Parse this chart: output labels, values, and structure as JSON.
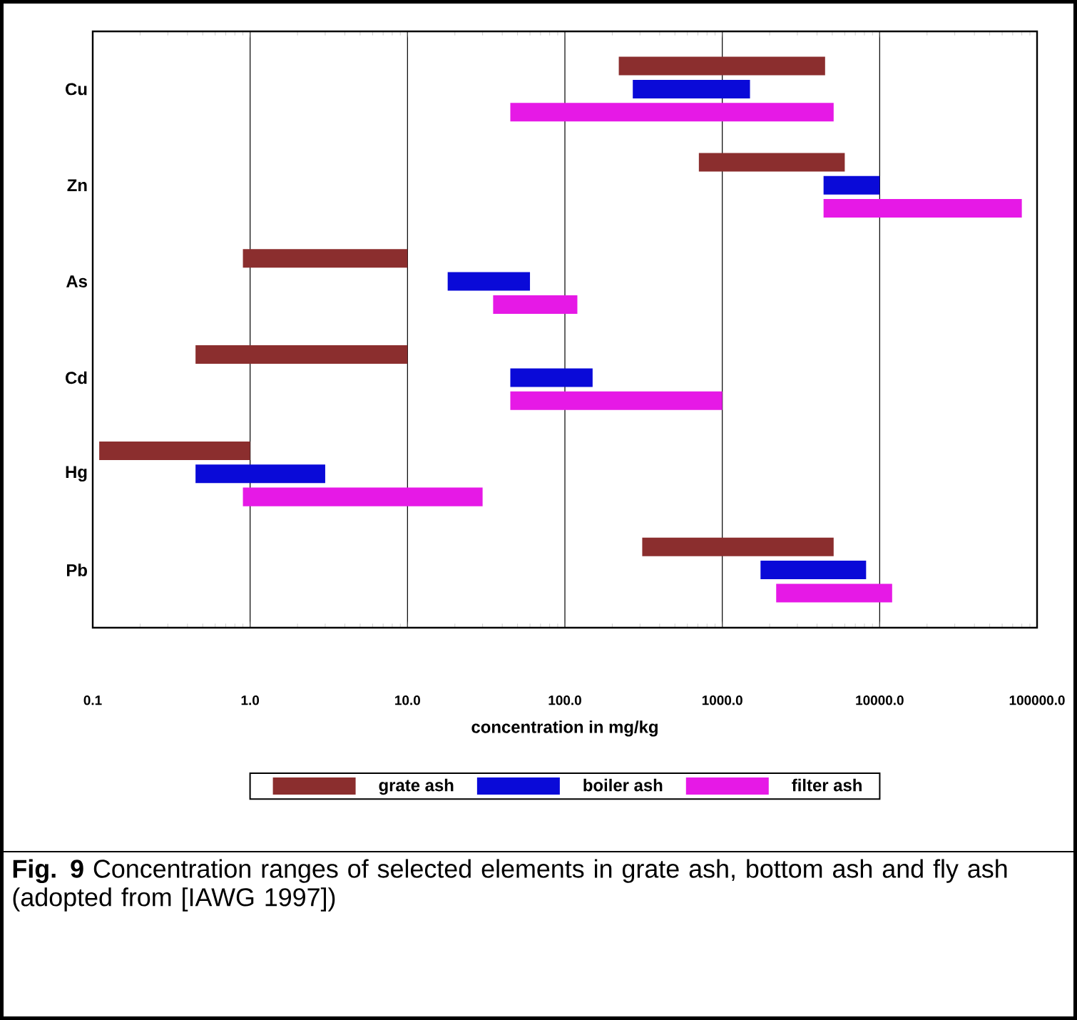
{
  "chart_data": {
    "type": "bar",
    "orientation": "horizontal",
    "categories": [
      "Cu",
      "Zn",
      "As",
      "Cd",
      "Hg",
      "Pb"
    ],
    "xlabel": "concentration in mg/kg",
    "log": "x",
    "xlim": [
      0.1,
      100000
    ],
    "xticks": [
      0.1,
      {
        "value": 1,
        "label": "1.0"
      },
      {
        "value": 10,
        "label": "10.0"
      },
      {
        "value": 100,
        "label": "100.0"
      },
      {
        "value": 1000,
        "label": "1000.0"
      },
      {
        "value": 10000,
        "label": "10000.0"
      },
      {
        "value": 100000,
        "label": "100000.0"
      }
    ],
    "grid": "x",
    "legend": "bottom",
    "series": [
      {
        "name": "grate ash",
        "color": "#8b2e2e",
        "base": [
          220,
          710,
          0.9,
          0.45,
          0.11,
          310
        ],
        "values": [
          4280,
          5290,
          9.1,
          9.55,
          0.89,
          4790
        ]
      },
      {
        "name": "boiler ash",
        "color": "#0a0ad8",
        "base": [
          270,
          4400,
          18,
          45,
          0.45,
          1750
        ],
        "values": [
          1230,
          5600,
          42,
          105,
          2.55,
          6450
        ]
      },
      {
        "name": "filter ash",
        "color": "#e619e6",
        "base": [
          45,
          4400,
          35,
          45,
          0.9,
          2200
        ],
        "values": [
          5055,
          75600,
          85,
          955,
          29.1,
          9800
        ]
      }
    ],
    "annotations": [
      "**Fig. 9** Concentration ranges of selected elements in grate ash, bottom ash and fly ash (adopted from [IAWG 1997])"
    ]
  }
}
